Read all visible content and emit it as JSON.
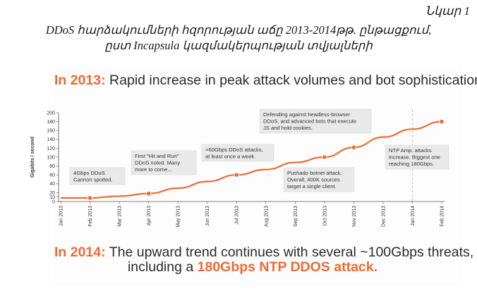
{
  "figure": {
    "number": "Նկար 1",
    "caption_line1": "DDoS հարձակումների հզորության աճը 2013-2014թթ. ընթացքում,",
    "caption_line2": "ըստ Incapsula կազմակերպության տվյալների"
  },
  "headline_2013": {
    "year": "In 2013:",
    "text": "Rapid increase in peak attack volumes and bot sophistication."
  },
  "headline_2014": {
    "year": "In 2014:",
    "text": "The upward trend continues with several ~100Gbps threats,",
    "text2": "including a",
    "highlight": "180Gbps NTP DDOS attack."
  },
  "chart_data": {
    "type": "line",
    "ylabel": "Gigabits / second",
    "ylim": [
      0,
      200
    ],
    "yticks": [
      0,
      10,
      20,
      40,
      60,
      80,
      100,
      120,
      140,
      160,
      180,
      200
    ],
    "ytick_labels": [
      "0",
      "10",
      "20",
      "40",
      "60",
      "80",
      "100",
      "120",
      "140",
      "160",
      "180",
      "200"
    ],
    "x_tick_labels": [
      "Jan 2013",
      "Feb 2013",
      "Mar 2013",
      "Apr 2013",
      "May 2013",
      "Jun 2013",
      "Jul 2013",
      "Aug 2013",
      "Sep 2013",
      "Oct 2013",
      "Nov 2013",
      "Dec 2013",
      "Jan 2014",
      "Feb 2014"
    ],
    "series": [
      {
        "x": [
          "Jan 2013",
          "Feb 2013",
          "Mar 2013",
          "Apr 2013",
          "May 2013",
          "Jun 2013",
          "Jul 2013",
          "Aug 2013",
          "Sep 2013",
          "Oct 2013",
          "Nov 2013",
          "Dec 2013",
          "Jan 2014",
          "Feb 2014"
        ],
        "values": [
          8,
          8,
          12,
          18,
          30,
          45,
          60,
          72,
          88,
          100,
          122,
          145,
          163,
          180
        ],
        "color": "#ee6a33"
      }
    ],
    "markers": [
      {
        "x": "Feb 2013",
        "y": 8
      },
      {
        "x": "Apr 2013",
        "y": 18
      },
      {
        "x": "Jul 2013",
        "y": 60
      },
      {
        "x": "Oct 2013",
        "y": 100
      },
      {
        "x": "Nov 2013",
        "y": 122
      },
      {
        "x": "Feb 2014",
        "y": 180
      }
    ],
    "annotations": [
      {
        "lines": [
          "4Gbps DDoS",
          "Cannon spotted."
        ]
      },
      {
        "lines": [
          "First \"Hit and Run\"",
          "DDoS noted. Many",
          "more to come..."
        ]
      },
      {
        "lines": [
          "+60Gbps DDoS attacks,",
          "at least once a week."
        ]
      },
      {
        "lines": [
          "Defending against headless-browser",
          "DDoS, and advanced bots that execute",
          "JS and hold cookies."
        ]
      },
      {
        "lines": [
          "Pushado botnet attack.",
          "Overall, 400K sources",
          "target a single client."
        ]
      },
      {
        "lines": [
          "NTP Amp. attacks",
          "increase. Biggest one",
          "reaching 180Gbps."
        ]
      }
    ],
    "reference_line": {
      "x": "Jan 2014",
      "style": "dashed"
    },
    "grid": false,
    "legend": "none"
  }
}
